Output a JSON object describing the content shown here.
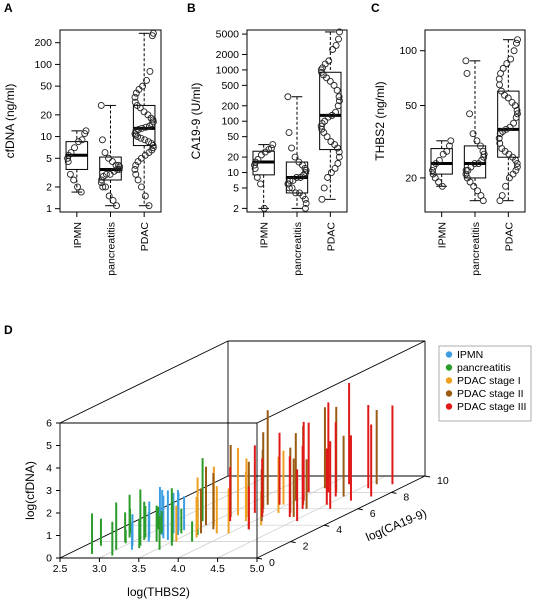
{
  "chart_data": [
    {
      "panel": "A",
      "type": "box",
      "ylabel": "cfDNA (ng/ml)",
      "y_scale": "log",
      "ylim": [
        0.9,
        300
      ],
      "y_ticks": [
        1,
        2,
        5,
        10,
        20,
        50,
        100,
        200
      ],
      "categories": [
        "IPMN",
        "pancreatitis",
        "PDAC"
      ],
      "boxes": [
        {
          "min": 1.7,
          "q1": 3.5,
          "median": 5.5,
          "q3": 8.5,
          "max": 12
        },
        {
          "min": 1.1,
          "q1": 2.5,
          "median": 3.5,
          "q3": 5.2,
          "max": 27
        },
        {
          "min": 1.1,
          "q1": 7.5,
          "median": 13,
          "q3": 27,
          "max": 270
        }
      ],
      "points": [
        [
          12,
          11,
          9,
          8.5,
          7,
          6,
          5.5,
          5,
          4.5,
          3,
          2.5,
          2,
          1.7
        ],
        [
          27,
          9,
          6,
          5,
          4.5,
          4,
          4,
          3.8,
          3.5,
          3.5,
          3.3,
          3,
          3,
          2.8,
          2.5,
          2.3,
          2,
          2,
          1.5,
          1.3,
          1.1
        ],
        [
          270,
          250,
          80,
          60,
          50,
          45,
          40,
          35,
          30,
          27,
          25,
          22,
          20,
          18,
          17,
          16,
          15,
          14,
          13.5,
          13,
          12.5,
          12,
          11,
          10.5,
          10,
          9.5,
          9,
          8.5,
          8,
          7.5,
          7,
          6.5,
          6,
          5.5,
          5,
          4.5,
          4,
          3.5,
          3,
          2.5,
          2,
          1.5,
          1.1
        ]
      ]
    },
    {
      "panel": "B",
      "type": "box",
      "ylabel": "CA19-9 (U/ml)",
      "y_scale": "log",
      "ylim": [
        1.7,
        6000
      ],
      "y_ticks": [
        2,
        5,
        10,
        20,
        50,
        100,
        200,
        500,
        1000,
        2000,
        5000
      ],
      "categories": [
        "IPMN",
        "pancreatitis",
        "PDAC"
      ],
      "boxes": [
        {
          "min": 2,
          "q1": 9,
          "median": 16,
          "q3": 26,
          "max": 35
        },
        {
          "min": 2,
          "q1": 4,
          "median": 8,
          "q3": 16,
          "max": 300
        },
        {
          "min": 3,
          "q1": 28,
          "median": 130,
          "q3": 900,
          "max": 5500
        }
      ],
      "points": [
        [
          35,
          30,
          28,
          25,
          22,
          18,
          16,
          14,
          12,
          8,
          6,
          2
        ],
        [
          300,
          60,
          30,
          20,
          16,
          14,
          12,
          11,
          10,
          9,
          8,
          8,
          7,
          7,
          6,
          6,
          5,
          5,
          4,
          4,
          3.5,
          3,
          2.5,
          2
        ],
        [
          5500,
          4000,
          3000,
          2500,
          1500,
          1300,
          1100,
          1000,
          900,
          800,
          700,
          600,
          500,
          400,
          300,
          250,
          200,
          150,
          130,
          120,
          100,
          90,
          80,
          70,
          60,
          50,
          40,
          35,
          30,
          25,
          20,
          15,
          12,
          10,
          8,
          5,
          3
        ]
      ]
    },
    {
      "panel": "C",
      "type": "box",
      "ylabel": "THBS2 (ng/ml)",
      "y_scale": "log",
      "ylim": [
        13,
        130
      ],
      "y_ticks": [
        20,
        50,
        100
      ],
      "categories": [
        "IPMN",
        "pancreatitis",
        "PDAC"
      ],
      "boxes": [
        {
          "min": 18,
          "q1": 21,
          "median": 24,
          "q3": 29,
          "max": 32
        },
        {
          "min": 15,
          "q1": 20,
          "median": 24,
          "q3": 30,
          "max": 88
        },
        {
          "min": 15,
          "q1": 26,
          "median": 37,
          "q3": 60,
          "max": 115
        }
      ],
      "points": [
        [
          32,
          30,
          28,
          27,
          25,
          24,
          23,
          22,
          21,
          20,
          19,
          18
        ],
        [
          88,
          75,
          45,
          35,
          32,
          30,
          28,
          27,
          26,
          25,
          24,
          24,
          23,
          22,
          22,
          21,
          20,
          19,
          18,
          17,
          16,
          15
        ],
        [
          115,
          110,
          100,
          90,
          85,
          80,
          75,
          70,
          65,
          60,
          57,
          55,
          52,
          50,
          47,
          45,
          43,
          40,
          38,
          37,
          36,
          35,
          33,
          31,
          29,
          28,
          27,
          26,
          25,
          24,
          23,
          22,
          21,
          20,
          18,
          16,
          15
        ]
      ]
    },
    {
      "panel": "D",
      "type": "scatter3d",
      "xlabel": "log(THBS2)",
      "ylabel": "log(CA19-9)",
      "zlabel": "log(cfDNA)",
      "x_ticks": [
        2.5,
        3.0,
        3.5,
        4.0,
        4.5,
        5.0
      ],
      "x_tick_labels": [
        "2.5",
        "3.0",
        "3.5",
        "4.0",
        "4.5",
        "5.0"
      ],
      "y_ticks": [
        0,
        2,
        4,
        6,
        8,
        10
      ],
      "z_ticks": [
        0,
        1,
        2,
        3,
        4,
        5,
        6
      ],
      "legend": [
        "IPMN",
        "pancreatitis",
        "PDAC stage I",
        "PDAC stage II",
        "PDAC stage III"
      ],
      "colors": [
        "#3c9ee0",
        "#2b9b2b",
        "#f0a020",
        "#9a5a12",
        "#e01818"
      ],
      "groups": [
        {
          "points": [
            [
              3.1,
              2.5,
              1.6
            ],
            [
              3.2,
              2.8,
              2.0
            ],
            [
              3.3,
              3.0,
              1.8
            ],
            [
              3.4,
              2.2,
              2.2
            ],
            [
              3.1,
              1.5,
              1.4
            ],
            [
              3.2,
              2.0,
              1.3
            ],
            [
              3.3,
              3.3,
              1.7
            ],
            [
              3.4,
              2.8,
              2.0
            ],
            [
              3.2,
              1.0,
              1.2
            ],
            [
              3.3,
              2.4,
              1.9
            ],
            [
              3.35,
              3.4,
              1.5
            ],
            [
              3.15,
              2.9,
              2.1
            ]
          ]
        },
        {
          "points": [
            [
              2.7,
              1.5,
              1.2
            ],
            [
              2.8,
              0.5,
              1.8
            ],
            [
              2.9,
              2.0,
              1.3
            ],
            [
              3.0,
              1.0,
              2.1
            ],
            [
              3.05,
              2.5,
              1.4
            ],
            [
              3.1,
              0.3,
              1.5
            ],
            [
              3.15,
              3.0,
              1.0
            ],
            [
              3.2,
              1.5,
              2.5
            ],
            [
              3.3,
              2.0,
              1.6
            ],
            [
              3.35,
              4.5,
              2.8
            ],
            [
              3.4,
              3.0,
              1.1
            ],
            [
              3.5,
              2.0,
              1.8
            ],
            [
              3.6,
              1.5,
              1.2
            ],
            [
              2.85,
              2.5,
              1.9
            ],
            [
              2.95,
              1.8,
              0.6
            ],
            [
              3.25,
              1.2,
              1.3
            ],
            [
              3.45,
              2.2,
              2.3
            ],
            [
              3.55,
              1.0,
              1.5
            ],
            [
              3.65,
              2.8,
              1.6
            ],
            [
              3.0,
              3.5,
              1.0
            ],
            [
              3.1,
              2.2,
              1.7
            ],
            [
              2.75,
              3.0,
              1.1
            ],
            [
              3.75,
              2.0,
              0.9
            ]
          ]
        },
        {
          "points": [
            [
              3.5,
              3.5,
              2.3
            ],
            [
              3.6,
              4.0,
              2.6
            ],
            [
              3.7,
              2.5,
              1.8
            ],
            [
              3.8,
              5.0,
              2.6
            ],
            [
              3.9,
              4.5,
              2.2
            ],
            [
              4.0,
              3.0,
              2.0
            ],
            [
              4.1,
              5.5,
              2.5
            ],
            [
              3.55,
              2.0,
              1.6
            ],
            [
              3.65,
              5.2,
              3.0
            ],
            [
              3.95,
              6.5,
              2.4
            ],
            [
              4.2,
              4.0,
              1.5
            ],
            [
              3.85,
              3.0,
              2.1
            ]
          ]
        },
        {
          "points": [
            [
              3.5,
              4.0,
              2.6
            ],
            [
              3.6,
              5.0,
              3.2
            ],
            [
              3.7,
              3.5,
              2.5
            ],
            [
              3.8,
              6.0,
              3.4
            ],
            [
              3.9,
              5.5,
              2.8
            ],
            [
              4.0,
              7.0,
              3.0
            ],
            [
              4.1,
              4.5,
              2.3
            ],
            [
              4.2,
              6.5,
              3.5
            ],
            [
              4.3,
              8.0,
              3.8
            ],
            [
              4.4,
              5.0,
              2.6
            ],
            [
              4.5,
              7.5,
              2.7
            ],
            [
              3.75,
              6.5,
              4.2
            ],
            [
              4.05,
              8.5,
              3.6
            ],
            [
              4.25,
              5.5,
              2.9
            ],
            [
              4.6,
              9.0,
              3.3
            ],
            [
              3.65,
              3.0,
              2.0
            ],
            [
              4.15,
              3.5,
              3.0
            ],
            [
              4.35,
              6.0,
              2.2
            ]
          ]
        },
        {
          "points": [
            [
              3.7,
              4.5,
              2.4
            ],
            [
              3.8,
              5.5,
              3.0
            ],
            [
              3.9,
              6.5,
              3.2
            ],
            [
              4.0,
              5.0,
              2.6
            ],
            [
              4.1,
              7.0,
              3.5
            ],
            [
              4.2,
              8.0,
              4.0
            ],
            [
              4.3,
              6.0,
              2.8
            ],
            [
              4.4,
              7.5,
              3.3
            ],
            [
              4.5,
              6.5,
              2.5
            ],
            [
              4.6,
              8.5,
              3.7
            ],
            [
              4.7,
              7.0,
              2.9
            ],
            [
              4.8,
              9.0,
              3.5
            ],
            [
              4.25,
              9.0,
              4.5
            ],
            [
              4.35,
              5.0,
              2.7
            ],
            [
              3.95,
              8.0,
              3.1
            ],
            [
              4.55,
              4.5,
              2.3
            ],
            [
              4.15,
              3.5,
              1.9
            ],
            [
              4.65,
              6.0,
              3.0
            ],
            [
              4.85,
              7.5,
              3.2
            ]
          ]
        }
      ]
    }
  ]
}
